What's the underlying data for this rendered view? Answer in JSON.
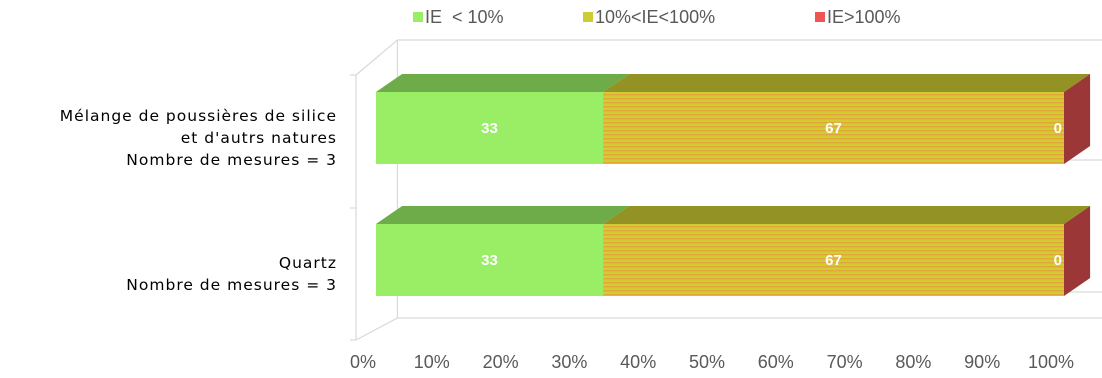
{
  "chart_data": {
    "type": "bar",
    "orientation": "horizontal",
    "stacked": "percent",
    "style": "3d",
    "categories": [
      [
        "Mélange de poussières de silice",
        "et d'autrs natures",
        "Nombre de mesures = 3"
      ],
      [
        "Quartz",
        "Nombre de mesures = 3"
      ]
    ],
    "series": [
      {
        "name": "IE  < 10%",
        "values": [
          33,
          33
        ],
        "color": "#99ee66"
      },
      {
        "name": "10%<IE<100%",
        "values": [
          67,
          67
        ],
        "color": "#cccc33"
      },
      {
        "name": "IE>100%",
        "values": [
          0,
          0
        ],
        "color": "#ee5555"
      }
    ],
    "data_labels": [
      [
        "33",
        "33"
      ],
      [
        "67",
        "67"
      ],
      [
        "0",
        "0"
      ]
    ],
    "xlim": [
      0,
      100
    ],
    "x_ticks": [
      "0%",
      "10%",
      "20%",
      "30%",
      "40%",
      "50%",
      "60%",
      "70%",
      "80%",
      "90%",
      "100%"
    ],
    "legend_position": "top",
    "grid": false
  }
}
